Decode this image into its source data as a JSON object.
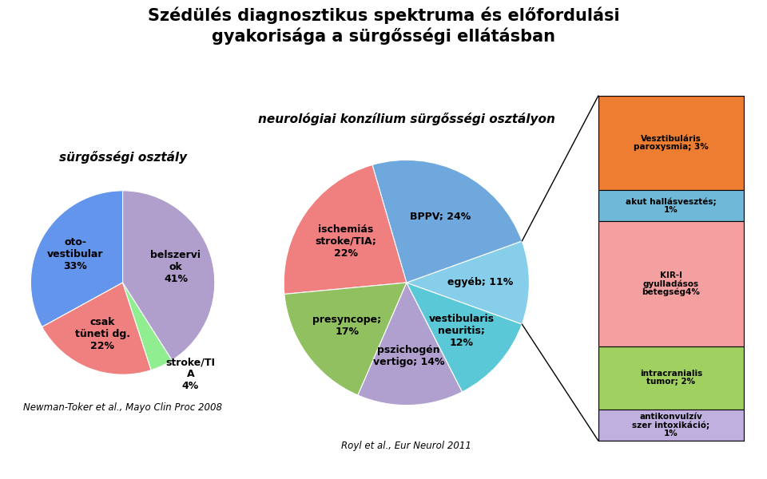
{
  "title": "Szédülés diagnosztikus spektruma és előfordulási\ngyakorisága a sürgősségi ellátásban",
  "chart_data": [
    {
      "type": "pie",
      "title": "sürgősségi osztály",
      "values": [
        33,
        22,
        4,
        41
      ],
      "value_labels": [
        "oto-\nvestibular\n33%",
        "csak\ntüneti dg.\n22%",
        "stroke/TI\nA\n4%",
        "belszervi\nok\n41%"
      ],
      "colors": [
        "#6495ed",
        "#f08080",
        "#90ee90",
        "#b09ecc"
      ],
      "data_labels": true,
      "annotations": [
        "Newman-Toker et al., Mayo Clin Proc 2008"
      ]
    },
    {
      "type": "pie",
      "title": "neurológiai konzílium sürgősségi osztályon",
      "values": [
        14,
        12,
        11,
        24,
        22,
        17
      ],
      "value_labels": [
        "pszichogén\nvertigo; 14%",
        "vestibularis\nneuritis;\n12%",
        "egyéb; 11%",
        "BPPV; 24%",
        "ischemiás\nstroke/TIA;\n22%",
        "presyncope;\n17%"
      ],
      "colors": [
        "#b0a0d0",
        "#5bc8d8",
        "#87ceeb",
        "#6fa8dc",
        "#f08080",
        "#90c060"
      ],
      "data_labels": true,
      "annotations": [
        "Royl et al., Eur Neurol 2011"
      ]
    },
    {
      "type": "bar",
      "stacked": true,
      "categories": [
        null
      ],
      "series": [
        {
          "values": [
            3
          ],
          "value_labels": [
            "Vesztibuláris\nparoxysmia; 3%"
          ],
          "color": "#ed7d31"
        },
        {
          "values": [
            1
          ],
          "value_labels": [
            "akut hallásvesztés;\n1%"
          ],
          "color": "#70b8d8"
        },
        {
          "values": [
            4
          ],
          "value_labels": [
            "KIR-I\ngyulladásos\nbetegség4%"
          ],
          "color": "#f4a0a0"
        },
        {
          "values": [
            2
          ],
          "value_labels": [
            "intracranialis\ntumor; 2%"
          ],
          "color": "#a0d060"
        },
        {
          "values": [
            1
          ],
          "value_labels": [
            "antikonvulzív\nszer intoxikáció;\n1%"
          ],
          "color": "#c0b0e0"
        }
      ],
      "ylim": [
        0,
        11
      ],
      "tick_labels": false,
      "data_labels": true
    }
  ]
}
